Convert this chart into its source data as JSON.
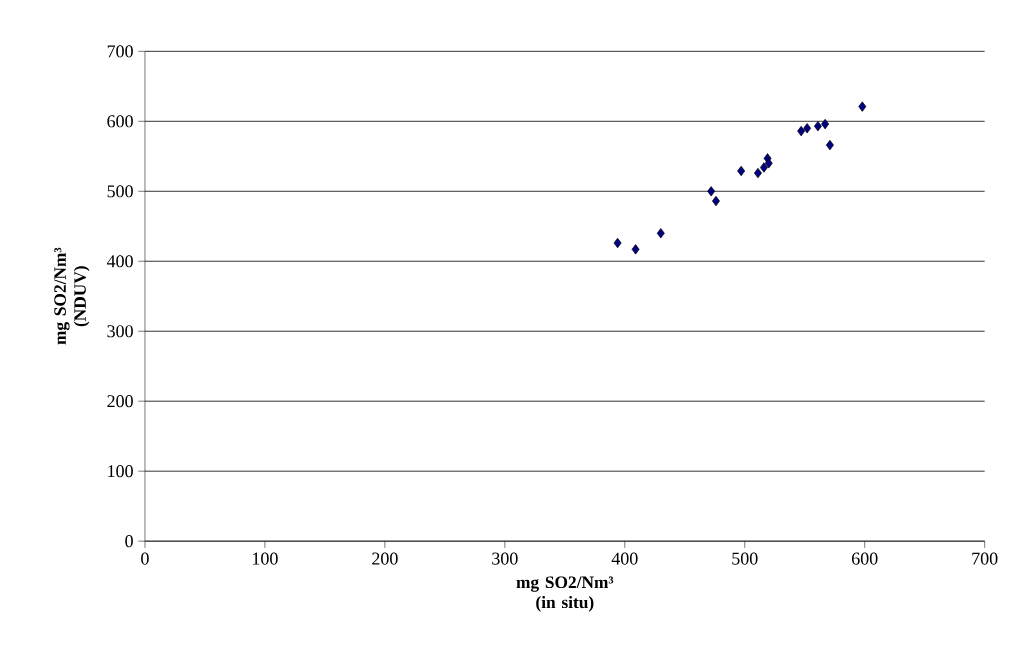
{
  "chart_data": {
    "type": "scatter",
    "xlabel": "mg SO2/Nm³ (in situ)",
    "ylabel": "mg SO2/Nm³ (NDUV)",
    "series": [
      {
        "color": "#000080",
        "x": [
          394,
          409,
          430,
          472,
          476,
          497,
          511,
          516,
          519,
          520,
          547,
          552,
          561,
          567,
          571,
          598
        ],
        "values": [
          426,
          417,
          440,
          500,
          486,
          529,
          526,
          534,
          547,
          540,
          586,
          590,
          593,
          596,
          566,
          621
        ]
      }
    ],
    "marker": "diamond",
    "xlim": [
      0,
      700
    ],
    "xticks": [
      0,
      100,
      200,
      300,
      400,
      500,
      600,
      700
    ],
    "ylim": [
      0,
      700
    ],
    "yticks": [
      0,
      100,
      200,
      300,
      400,
      500,
      600,
      700
    ],
    "grid": "y"
  }
}
